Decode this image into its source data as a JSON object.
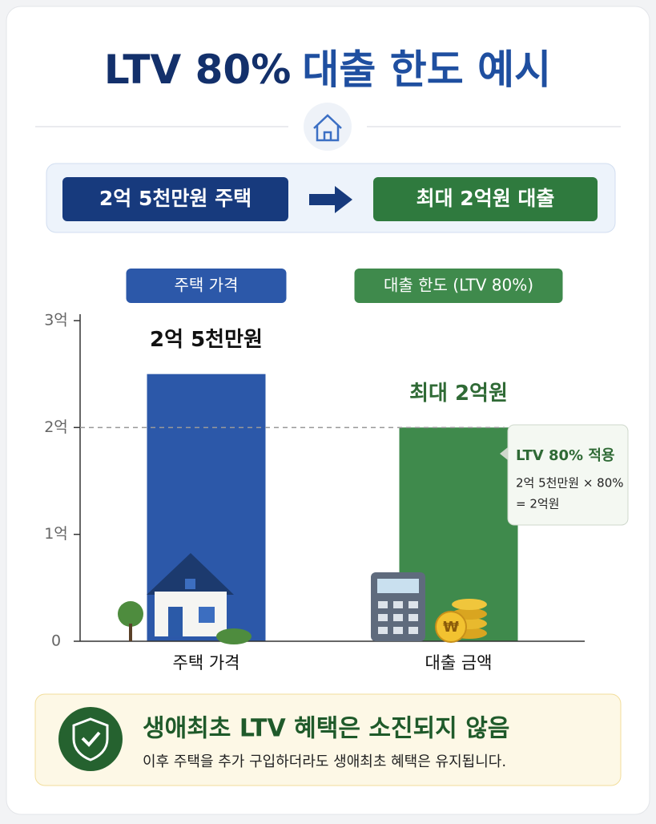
{
  "header": {
    "title_main": "LTV 80%",
    "title_rest": "대출 한도 예시"
  },
  "banner": {
    "from": "2억 5천만원 주택",
    "to": "최대 2억원 대출"
  },
  "chart_data": {
    "type": "bar",
    "series_headers": [
      "주택 가격",
      "대출 한도 (LTV 80%)"
    ],
    "categories": [
      "주택 가격",
      "대출 금액"
    ],
    "values": [
      2.5,
      2
    ],
    "value_labels": [
      "2억 5천만원",
      "최대 2억원"
    ],
    "colors": [
      "#2c58a9",
      "#3f8a4c"
    ],
    "ylim": [
      0,
      3
    ],
    "yticks": [
      0,
      {
        "value": 1,
        "label": "1억"
      },
      {
        "value": 2,
        "label": "2억"
      },
      {
        "value": 3,
        "label": "3억"
      }
    ],
    "annotation": {
      "title": "LTV 80% 적용",
      "line1": "2억 5천만원 × 80%",
      "line2": "= 2억원"
    }
  },
  "footer": {
    "title": "생애최초 LTV 혜택은 소진되지 않음",
    "text": "이후 주택을 추가 구입하더라도 생애최초 혜택은 유지됩니다."
  }
}
